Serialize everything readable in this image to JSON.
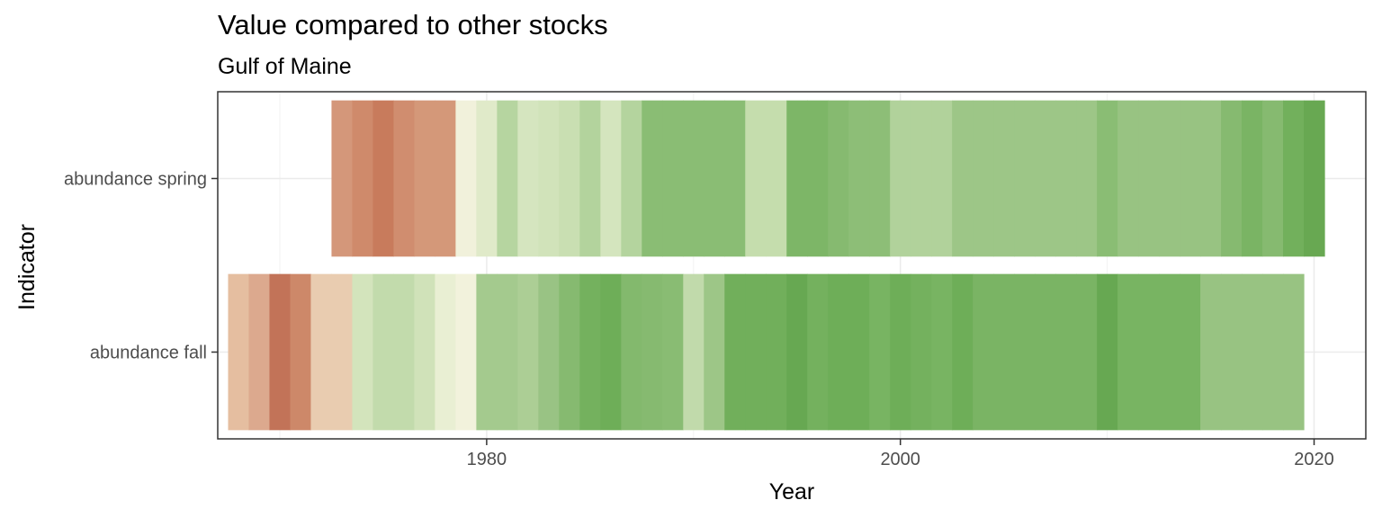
{
  "chart_data": {
    "type": "heatmap",
    "title": "Value compared to other stocks",
    "subtitle": "Gulf of Maine",
    "xlabel": "Year",
    "ylabel": "Indicator",
    "xlim": [
      1967.0,
      2022.5
    ],
    "x_ticks": [
      1980,
      2000,
      2020
    ],
    "grid": true,
    "legend": "none",
    "categories": [
      "abundance spring",
      "abundance fall"
    ],
    "series": [
      {
        "name": "abundance spring",
        "years": [
          1973,
          1974,
          1975,
          1976,
          1977,
          1978,
          1979,
          1980,
          1981,
          1982,
          1983,
          1984,
          1985,
          1986,
          1987,
          1988,
          1989,
          1990,
          1991,
          1992,
          1993,
          1994,
          1995,
          1996,
          1997,
          1998,
          1999,
          2000,
          2001,
          2002,
          2003,
          2004,
          2005,
          2006,
          2007,
          2008,
          2009,
          2010,
          2011,
          2012,
          2013,
          2014,
          2015,
          2016,
          2017,
          2018,
          2019,
          2020
        ],
        "colors": [
          "#d4977a",
          "#cf8a6b",
          "#c87b5c",
          "#d08d6f",
          "#d49879",
          "#d49879",
          "#f1f1db",
          "#e0eac9",
          "#b6d5a0",
          "#d5e5bf",
          "#d1e3ba",
          "#c9dfb2",
          "#b3d39d",
          "#d4e5be",
          "#b4d49e",
          "#8abd74",
          "#8abd74",
          "#8abd74",
          "#8abd74",
          "#8abd74",
          "#c5ddad",
          "#c5ddad",
          "#7db667",
          "#7db667",
          "#86ba70",
          "#8dbe77",
          "#8dbe77",
          "#b1d29b",
          "#b1d29b",
          "#b1d29b",
          "#9dc687",
          "#9dc687",
          "#9dc687",
          "#9dc687",
          "#9dc687",
          "#9dc687",
          "#9dc687",
          "#8abd74",
          "#98c382",
          "#98c382",
          "#98c382",
          "#98c382",
          "#98c382",
          "#86ba70",
          "#7ab464",
          "#86ba70",
          "#72b05c",
          "#68a852"
        ]
      },
      {
        "name": "abundance fall",
        "years": [
          1968,
          1969,
          1970,
          1971,
          1972,
          1973,
          1974,
          1975,
          1976,
          1977,
          1978,
          1979,
          1980,
          1981,
          1982,
          1983,
          1984,
          1985,
          1986,
          1987,
          1988,
          1989,
          1990,
          1991,
          1992,
          1993,
          1994,
          1995,
          1996,
          1997,
          1998,
          1999,
          2000,
          2001,
          2002,
          2003,
          2004,
          2005,
          2006,
          2007,
          2008,
          2009,
          2010,
          2011,
          2012,
          2013,
          2014,
          2015,
          2016,
          2017,
          2018,
          2019
        ],
        "colors": [
          "#e5bea0",
          "#dca98e",
          "#c27358",
          "#cd8869",
          "#e9ccb0",
          "#e9ccb0",
          "#d3e4bc",
          "#c2dbac",
          "#c2dbac",
          "#d0e2b9",
          "#e9efd3",
          "#f2f2dc",
          "#a4ca8e",
          "#a4ca8e",
          "#acce95",
          "#99c384",
          "#86ba70",
          "#74b15e",
          "#6eae58",
          "#83b96d",
          "#86ba70",
          "#89bc73",
          "#c1daab",
          "#9dc687",
          "#71af5b",
          "#71af5b",
          "#71af5b",
          "#67a852",
          "#74b15e",
          "#6eae58",
          "#6eae58",
          "#78b462",
          "#6eae58",
          "#74b15e",
          "#78b462",
          "#6eae58",
          "#7ab464",
          "#7ab464",
          "#7ab464",
          "#7ab464",
          "#7ab464",
          "#7ab464",
          "#67a852",
          "#78b462",
          "#78b462",
          "#78b462",
          "#78b462",
          "#98c382",
          "#98c382",
          "#98c382",
          "#98c382",
          "#98c382"
        ]
      }
    ]
  }
}
